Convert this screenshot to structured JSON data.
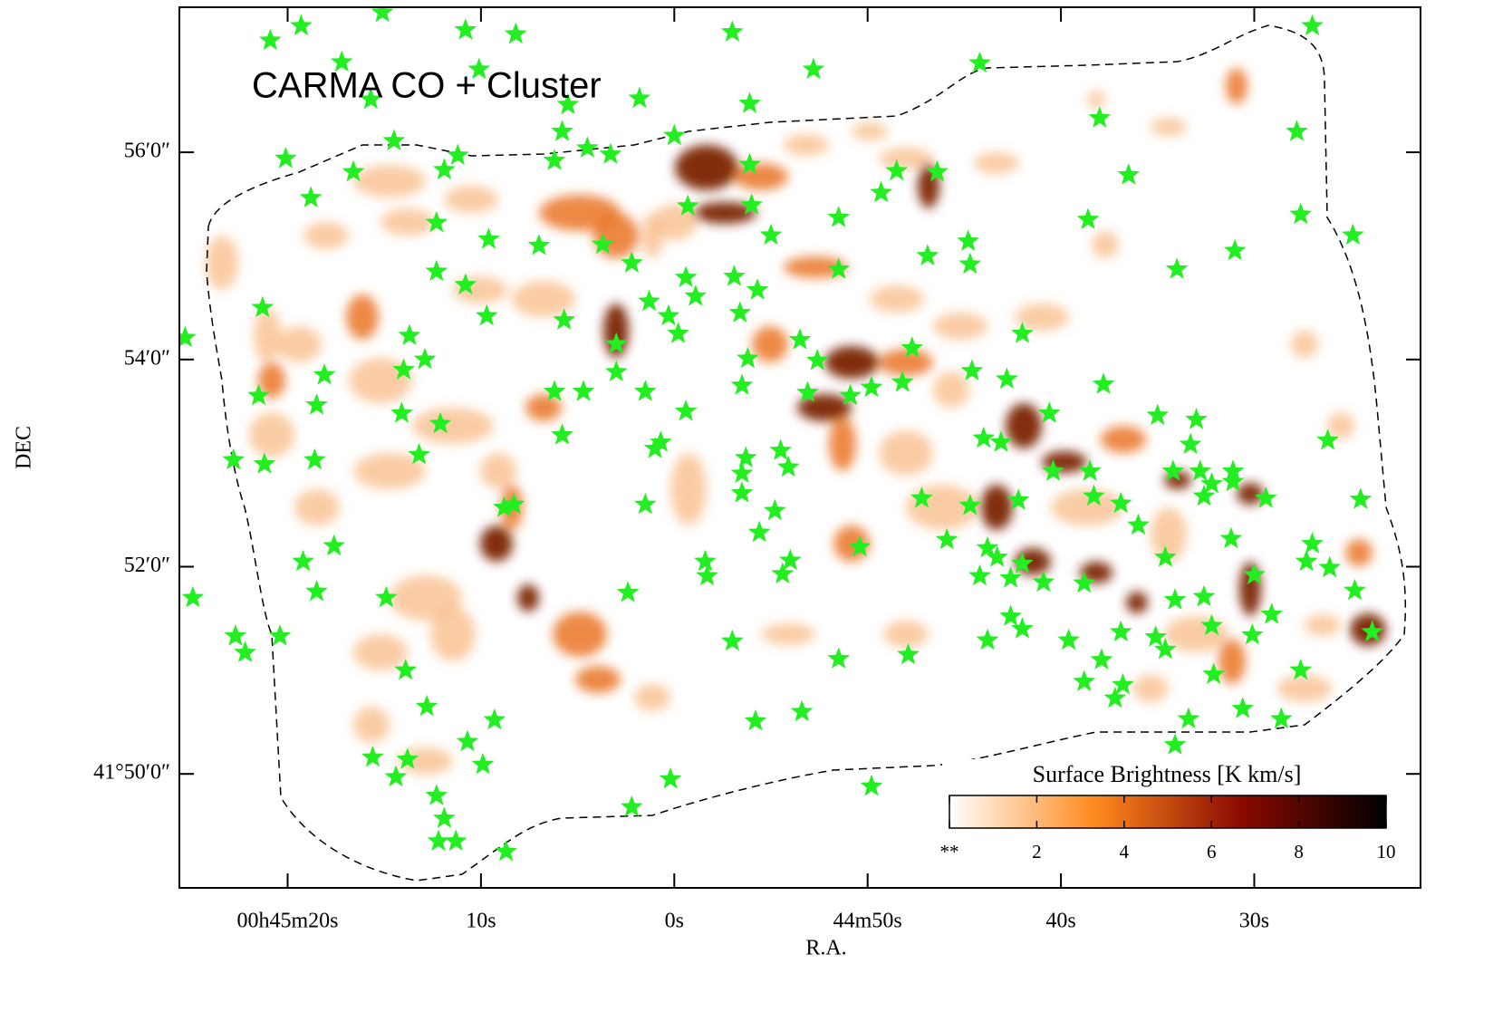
{
  "chart_data": {
    "type": "scatter",
    "title": "CARMA CO + Cluster",
    "x_label": "R.A.",
    "y_label": "DEC",
    "xlim": [
      85.6,
      21.4
    ],
    "ylim": [
      48.9,
      57.4
    ],
    "xticks": [
      {
        "value": 80,
        "label": "00h45m20s"
      },
      {
        "value": 70,
        "label": "10s"
      },
      {
        "value": 60,
        "label": "0s"
      },
      {
        "value": 50,
        "label": "44m50s"
      },
      {
        "value": 40,
        "label": "40s"
      },
      {
        "value": 30,
        "label": "30s"
      }
    ],
    "yticks": [
      {
        "value": 56,
        "label": "56′0″"
      },
      {
        "value": 54,
        "label": "54′0″"
      },
      {
        "value": 52,
        "label": "52′0″"
      },
      {
        "value": 50,
        "label": "41°50′0″"
      }
    ],
    "color": "#22ee22",
    "x": [
      79.3,
      80.9,
      77.2,
      75.1,
      70.8,
      68.2,
      70.1,
      75.7,
      65.5,
      61.8,
      57.0,
      52.8,
      56.1,
      44.2,
      38.0,
      27.8,
      27.0,
      80.1,
      76.6,
      78.8,
      74.5,
      71.9,
      71.2,
      66.2,
      65.8,
      64.5,
      63.3,
      60.0,
      56.1,
      59.3,
      56.0,
      55.0,
      72.3,
      69.6,
      67.0,
      63.7,
      62.2,
      46.4,
      48.5,
      49.3,
      51.5,
      38.6,
      36.5,
      27.6,
      24.9,
      31.0,
      34.0,
      44.8,
      44.7,
      46.9,
      51.5,
      72.3,
      70.8,
      59.4,
      56.9,
      55.7,
      58.9,
      61.3,
      60.3,
      59.8,
      56.6,
      65.7,
      69.7,
      81.3,
      73.7,
      63.0,
      63.0,
      53.5,
      52.6,
      56.2,
      42.0,
      47.7,
      72.9,
      74.0,
      78.1,
      81.5,
      78.5,
      74.1,
      72.1,
      73.2,
      82.8,
      81.2,
      78.6,
      66.2,
      64.7,
      61.5,
      59.4,
      65.8,
      60.7,
      61.0,
      53.1,
      50.9,
      49.8,
      48.2,
      56.5,
      44.6,
      42.8,
      37.8,
      40.6,
      35.0,
      33.0,
      44.0,
      43.1,
      33.3,
      34.2,
      32.8,
      40.4,
      38.5,
      31.1,
      32.2,
      32.6,
      29.4,
      26.2,
      24.5,
      38.3,
      36.9,
      36.0,
      44.7,
      42.2,
      56.3,
      56.5,
      56.5,
      54.5,
      54.1,
      54.8,
      55.6,
      61.5,
      68.8,
      68.3,
      47.2,
      45.9,
      43.8,
      43.3,
      42.0,
      40.9,
      42.6,
      44.2,
      38.8,
      34.6,
      34.1,
      32.6,
      31.2,
      30.0,
      29.1,
      30.1,
      32.2,
      34.6,
      35.1,
      36.9,
      37.9,
      39.6,
      42.0,
      42.6,
      43.8,
      47.9,
      51.5,
      50.4,
      54.0,
      54.4,
      58.4,
      58.3,
      62.4,
      57.0,
      27.0,
      27.3,
      26.1,
      24.8,
      27.6,
      23.9,
      32.1,
      30.6,
      28.6,
      33.4,
      34.1,
      37.2,
      36.8,
      38.8,
      79.2,
      77.6,
      78.5,
      74.9,
      84.9,
      82.7,
      82.2,
      80.4,
      73.9,
      72.8,
      69.3,
      70.7,
      69.9,
      73.8,
      75.6,
      74.4,
      72.3,
      71.9,
      72.2,
      71.3,
      68.7,
      60.2,
      62.2,
      49.8,
      53.4,
      55.8,
      85.3,
      31.1
    ],
    "values": [
      57.22,
      57.08,
      56.87,
      57.35,
      57.18,
      57.14,
      56.8,
      56.51,
      56.46,
      56.52,
      57.16,
      56.8,
      56.47,
      56.86,
      56.33,
      56.2,
      57.22,
      55.94,
      55.81,
      55.56,
      56.11,
      55.83,
      55.97,
      55.92,
      56.2,
      56.04,
      55.98,
      56.16,
      55.88,
      55.48,
      55.49,
      55.2,
      55.32,
      55.16,
      55.1,
      55.11,
      54.93,
      55.81,
      55.82,
      55.61,
      55.37,
      55.35,
      55.78,
      55.4,
      55.2,
      55.05,
      54.87,
      55.14,
      54.92,
      55.0,
      54.87,
      54.85,
      54.72,
      54.79,
      54.8,
      54.67,
      54.61,
      54.56,
      54.42,
      54.25,
      54.45,
      54.38,
      54.42,
      54.5,
      54.23,
      54.15,
      53.88,
      54.19,
      53.99,
      54.01,
      54.25,
      54.11,
      54.0,
      53.9,
      53.85,
      53.65,
      53.56,
      53.48,
      53.38,
      53.08,
      53.03,
      52.99,
      53.03,
      53.69,
      53.69,
      53.69,
      53.5,
      53.27,
      53.2,
      53.14,
      53.68,
      53.65,
      53.73,
      53.78,
      53.75,
      53.89,
      53.81,
      53.76,
      53.48,
      53.46,
      53.42,
      53.24,
      53.2,
      53.18,
      52.92,
      52.92,
      52.92,
      52.92,
      52.92,
      52.8,
      52.68,
      52.66,
      53.22,
      52.65,
      52.68,
      52.61,
      52.4,
      52.59,
      52.64,
      53.05,
      52.9,
      52.71,
      53.12,
      52.96,
      52.54,
      52.33,
      52.6,
      52.57,
      52.6,
      52.66,
      52.26,
      52.18,
      52.09,
      52.03,
      51.85,
      51.89,
      51.91,
      51.84,
      52.09,
      51.68,
      51.71,
      52.27,
      51.92,
      51.54,
      51.34,
      51.43,
      51.2,
      51.32,
      51.37,
      51.1,
      51.29,
      51.4,
      51.52,
      51.29,
      51.15,
      51.11,
      52.19,
      52.06,
      51.93,
      52.05,
      51.91,
      51.75,
      51.28,
      52.22,
      52.05,
      51.99,
      51.77,
      51.0,
      51.37,
      50.96,
      50.63,
      50.53,
      50.53,
      50.28,
      50.73,
      50.86,
      50.89,
      52.05,
      52.2,
      51.76,
      51.7,
      51.7,
      51.33,
      51.17,
      51.33,
      51.0,
      50.65,
      50.52,
      50.31,
      50.09,
      50.14,
      50.16,
      49.97,
      49.79,
      49.57,
      49.35,
      49.35,
      49.25,
      49.95,
      49.68,
      49.88,
      50.6,
      50.51,
      54.21,
      52.82
    ],
    "colorbar": {
      "label": "Surface Brightness [K km/s]",
      "lim": [
        0,
        10
      ],
      "ticks": [
        {
          "value": 0,
          "label": "**"
        },
        2,
        4,
        6,
        8,
        10
      ],
      "colors": [
        "#ffffff",
        "#ff8a1e",
        "#8b0a00",
        "#000000"
      ]
    }
  }
}
